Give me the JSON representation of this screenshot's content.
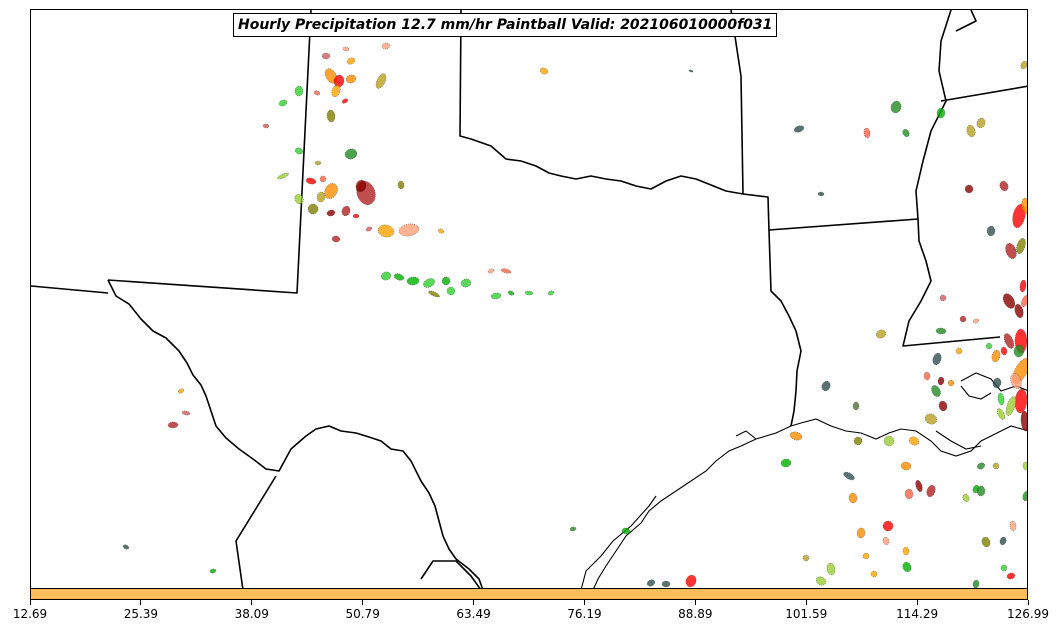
{
  "title": "Hourly Precipitation 12.7 mm/hr Paintball Valid: 202106010000f031",
  "colorbar": {
    "color": "#ffbe5c",
    "ticks": [
      "12.69",
      "25.39",
      "38.09",
      "50.79",
      "63.49",
      "76.19",
      "88.89",
      "101.59",
      "114.29",
      "126.99"
    ],
    "range": [
      12.69,
      126.99
    ]
  },
  "map": {
    "region": "Southern Plains / Texas",
    "boundary_color": "#000000",
    "paintball_colors": [
      "#ff0000",
      "#ff8c00",
      "#ffa500",
      "#32cd32",
      "#00b000",
      "#228b22",
      "#9acd32",
      "#b8a020",
      "#808000",
      "#8b0000",
      "#b22222",
      "#cd5c5c",
      "#ff6347",
      "#ffa07a",
      "#2f4f4f",
      "#556b2f"
    ]
  }
}
